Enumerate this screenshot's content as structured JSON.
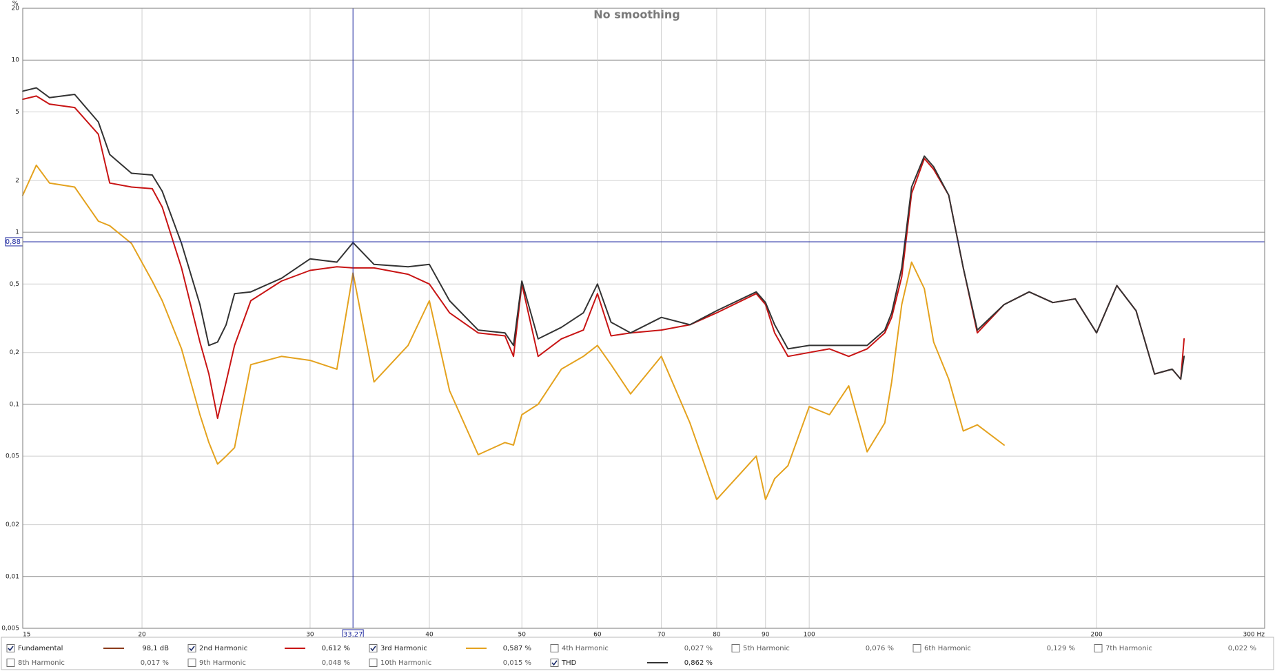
{
  "chart_data": {
    "type": "line",
    "title": "No smoothing",
    "y_unit": "%",
    "log_x": true,
    "log_y": true,
    "grid": true,
    "xlim": [
      15,
      300
    ],
    "ylim": [
      0.005,
      20
    ],
    "xticks": [
      15,
      20,
      30,
      40,
      50,
      60,
      70,
      80,
      90,
      100,
      200,
      {
        "value": 300,
        "label": "300 Hz"
      }
    ],
    "yticks": [
      20,
      10,
      5,
      2,
      1,
      {
        "value": 0.5,
        "label": "0,5"
      },
      {
        "value": 0.2,
        "label": "0,2"
      },
      {
        "value": 0.1,
        "label": "0,1"
      },
      {
        "value": 0.05,
        "label": "0,05"
      },
      {
        "value": 0.02,
        "label": "0,02"
      },
      {
        "value": 0.01,
        "label": "0,01"
      },
      {
        "value": 0.005,
        "label": "0,005"
      }
    ],
    "cursor": {
      "x": {
        "value": 33.27,
        "label": "33,27"
      },
      "y": {
        "value": 0.88,
        "label": "0,88"
      }
    },
    "x": [
      15,
      15.5,
      16,
      17,
      18,
      18.5,
      19.5,
      20.5,
      21,
      22,
      23,
      23.5,
      24,
      24.5,
      25,
      26,
      28,
      30,
      32,
      33.27,
      35,
      38,
      40,
      42,
      45,
      48,
      49,
      50,
      52,
      55,
      58,
      60,
      62,
      65,
      70,
      75,
      80,
      88,
      90,
      92,
      95,
      100,
      105,
      110,
      115,
      120,
      122,
      125,
      128,
      132,
      135,
      140,
      145,
      150,
      160,
      170,
      180,
      190,
      200,
      210,
      220,
      230,
      240,
      245,
      247
    ],
    "series": [
      {
        "name": "Fundamental",
        "color": "#8b3a1a",
        "checked": true,
        "readout": "98,1 dB"
      },
      {
        "name": "2nd Harmonic",
        "color": "#c81414",
        "checked": true,
        "readout": "0,612 %",
        "values": [
          5.92,
          6.18,
          5.55,
          5.3,
          3.71,
          1.93,
          1.83,
          1.79,
          1.4,
          0.62,
          0.23,
          0.15,
          0.083,
          0.135,
          0.22,
          0.4,
          0.52,
          0.6,
          0.63,
          0.62,
          0.62,
          0.57,
          0.5,
          0.34,
          0.26,
          0.25,
          0.19,
          0.5,
          0.19,
          0.24,
          0.27,
          0.44,
          0.25,
          0.26,
          0.27,
          0.29,
          0.34,
          0.44,
          0.38,
          0.26,
          0.19,
          0.2,
          0.21,
          0.19,
          0.21,
          0.26,
          0.32,
          0.55,
          1.68,
          2.68,
          2.32,
          1.64,
          0.62,
          0.26,
          0.38,
          0.45,
          0.39,
          0.41,
          0.26,
          0.49,
          0.35,
          0.15,
          0.16,
          0.14,
          0.24
        ]
      },
      {
        "name": "3rd Harmonic",
        "color": "#e4a21e",
        "checked": true,
        "readout": "0,587 %",
        "values": [
          1.64,
          2.45,
          1.93,
          1.83,
          1.16,
          1.09,
          0.86,
          0.52,
          0.4,
          0.21,
          0.087,
          0.06,
          0.045,
          0.05,
          0.056,
          0.17,
          0.19,
          0.18,
          0.16,
          0.58,
          0.135,
          0.22,
          0.4,
          0.12,
          0.051,
          0.06,
          0.058,
          0.087,
          0.1,
          0.16,
          0.19,
          0.22,
          0.17,
          0.115,
          0.19,
          0.078,
          0.028,
          0.05,
          0.028,
          0.037,
          0.044,
          0.097,
          0.087,
          0.128,
          0.053,
          0.078,
          0.135,
          0.38,
          0.67,
          0.47,
          0.23,
          0.14,
          0.07,
          0.076,
          0.058,
          null,
          null,
          null,
          null,
          null,
          null,
          null,
          null,
          null,
          null
        ]
      },
      {
        "name": "4th Harmonic",
        "color": "#d8c030",
        "checked": false,
        "readout": "0,027 %"
      },
      {
        "name": "5th Harmonic",
        "color": "#98c850",
        "checked": false,
        "readout": "0,076 %"
      },
      {
        "name": "6th Harmonic",
        "color": "#5a7fdc",
        "checked": false,
        "readout": "0,129 %"
      },
      {
        "name": "7th Harmonic",
        "color": "#d86ccc",
        "checked": false,
        "readout": "0,022 %"
      },
      {
        "name": "8th Harmonic",
        "color": "#a0a0a0",
        "checked": false,
        "readout": "0,017 %"
      },
      {
        "name": "9th Harmonic",
        "color": "#18a8c8",
        "checked": false,
        "readout": "0,048 %"
      },
      {
        "name": "10th Harmonic",
        "color": "#9a9a28",
        "checked": false,
        "readout": "0,015 %"
      },
      {
        "name": "THD",
        "color": "#333333",
        "checked": true,
        "readout": "0,862 %",
        "values": [
          6.6,
          6.9,
          6.05,
          6.32,
          4.37,
          2.83,
          2.2,
          2.15,
          1.73,
          0.86,
          0.38,
          0.22,
          0.23,
          0.29,
          0.44,
          0.45,
          0.54,
          0.7,
          0.67,
          0.87,
          0.65,
          0.63,
          0.65,
          0.4,
          0.27,
          0.26,
          0.22,
          0.52,
          0.24,
          0.28,
          0.34,
          0.5,
          0.3,
          0.26,
          0.32,
          0.29,
          0.35,
          0.45,
          0.39,
          0.29,
          0.21,
          0.22,
          0.22,
          0.22,
          0.22,
          0.27,
          0.34,
          0.62,
          1.83,
          2.77,
          2.4,
          1.64,
          0.62,
          0.27,
          0.38,
          0.45,
          0.39,
          0.41,
          0.26,
          0.49,
          0.35,
          0.15,
          0.16,
          0.14,
          0.19
        ]
      }
    ]
  }
}
